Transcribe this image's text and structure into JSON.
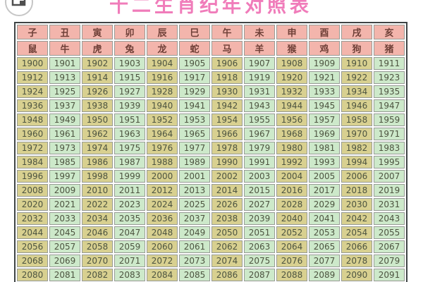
{
  "title": {
    "text": "十二生肖纪年对照表",
    "color": "#f07cba"
  },
  "toolbar": {
    "icon": "copy-page-icon"
  },
  "table": {
    "branch_row": [
      "子",
      "丑",
      "寅",
      "卯",
      "辰",
      "巳",
      "午",
      "未",
      "申",
      "酉",
      "戌",
      "亥"
    ],
    "animal_row": [
      "鼠",
      "牛",
      "虎",
      "兔",
      "龙",
      "蛇",
      "马",
      "羊",
      "猴",
      "鸡",
      "狗",
      "猪"
    ],
    "year_rows": [
      [
        1900,
        1901,
        1902,
        1903,
        1904,
        1905,
        1906,
        1907,
        1908,
        1909,
        1910,
        1911
      ],
      [
        1912,
        1913,
        1914,
        1915,
        1916,
        1917,
        1918,
        1919,
        1920,
        1921,
        1922,
        1923
      ],
      [
        1924,
        1925,
        1926,
        1927,
        1928,
        1929,
        1930,
        1931,
        1932,
        1933,
        1934,
        1935
      ],
      [
        1936,
        1937,
        1938,
        1939,
        1940,
        1941,
        1942,
        1943,
        1944,
        1945,
        1946,
        1947
      ],
      [
        1948,
        1949,
        1950,
        1951,
        1952,
        1953,
        1954,
        1955,
        1956,
        1957,
        1958,
        1959
      ],
      [
        1960,
        1961,
        1962,
        1963,
        1964,
        1965,
        1966,
        1967,
        1968,
        1969,
        1970,
        1971
      ],
      [
        1972,
        1973,
        1974,
        1975,
        1976,
        1977,
        1978,
        1979,
        1980,
        1981,
        1982,
        1983
      ],
      [
        1984,
        1985,
        1986,
        1987,
        1988,
        1989,
        1990,
        1991,
        1992,
        1993,
        1994,
        1995
      ],
      [
        1996,
        1997,
        1998,
        1999,
        2000,
        2001,
        2002,
        2003,
        2004,
        2005,
        2006,
        2007
      ],
      [
        2008,
        2009,
        2010,
        2011,
        2012,
        2013,
        2014,
        2015,
        2016,
        2017,
        2018,
        2019
      ],
      [
        2020,
        2021,
        2022,
        2023,
        2024,
        2025,
        2026,
        2027,
        2028,
        2029,
        2030,
        2031
      ],
      [
        2032,
        2033,
        2034,
        2035,
        2036,
        2037,
        2038,
        2039,
        2040,
        2041,
        2042,
        2043
      ],
      [
        2044,
        2045,
        2046,
        2047,
        2048,
        2049,
        2050,
        2051,
        2052,
        2053,
        2054,
        2055
      ],
      [
        2056,
        2057,
        2058,
        2059,
        2060,
        2061,
        2062,
        2063,
        2064,
        2065,
        2066,
        2067
      ],
      [
        2068,
        2069,
        2070,
        2071,
        2072,
        2073,
        2074,
        2075,
        2076,
        2077,
        2078,
        2079
      ],
      [
        2080,
        2081,
        2082,
        2083,
        2084,
        2085,
        2086,
        2087,
        2088,
        2089,
        2090,
        2091
      ]
    ],
    "colors": {
      "title_color": "#f07cba",
      "header_bg": "#f3b5ac",
      "header_text": "#6f4038",
      "odd_col_bg": "#d8d090",
      "even_col_bg": "#cde9ca",
      "year_text": "#4d5440",
      "cell_border": "#979b95",
      "outer_border": "#3f4445"
    }
  }
}
